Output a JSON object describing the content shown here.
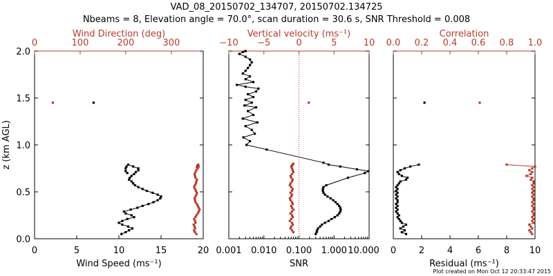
{
  "header": {
    "title": "VAD_08_20150702_134707, 20150702.134725",
    "subtitle": "Nbeams = 8, Elevation angle = 70.0°, scan duration = 30.6 s, SNR Threshold = 0.008"
  },
  "footer": {
    "timestamp": "Plot created on Mon Oct 12 20:33:47 2015"
  },
  "colors": {
    "primary": "#000000",
    "secondary": "#b83a2c"
  },
  "chart_data": [
    {
      "type": "line",
      "panel": "wind",
      "ylabel": "z (km AGL)",
      "ylim": [
        0,
        2
      ],
      "yticks": [
        "0.0",
        "0.5",
        "1.0",
        "1.5",
        "2.0"
      ],
      "xlabel_bottom": "Wind Speed (ms⁻¹)",
      "xlim_bottom": [
        0,
        20
      ],
      "xticks_bottom": [
        "0",
        "5",
        "10",
        "15",
        "20"
      ],
      "xlabel_top": "Wind Direction (deg)",
      "xlim_top": [
        0,
        370
      ],
      "xticks_top": [
        "0",
        "100",
        "200",
        "300"
      ],
      "series": [
        {
          "name": "Wind Speed",
          "axis": "bottom",
          "color": "#000000",
          "x": [
            10.3,
            10.8,
            11.2,
            11.6,
            11.1,
            10.4,
            10.0,
            10.4,
            11.0,
            11.8,
            11.5,
            10.8,
            10.6,
            11.4,
            12.2,
            12.8,
            13.5,
            14.1,
            14.6,
            14.9,
            15.0,
            14.6,
            14.0,
            13.3,
            12.8,
            12.3,
            11.9,
            11.7,
            11.5,
            11.2,
            11.3,
            11.5,
            11.8,
            12.0,
            12.3,
            12.3,
            11.7,
            11.1,
            10.9,
            10.8,
            10.8,
            11.0
          ],
          "y": [
            0.05,
            0.07,
            0.09,
            0.11,
            0.13,
            0.15,
            0.17,
            0.19,
            0.21,
            0.23,
            0.25,
            0.27,
            0.29,
            0.31,
            0.33,
            0.35,
            0.37,
            0.39,
            0.41,
            0.43,
            0.45,
            0.47,
            0.49,
            0.51,
            0.53,
            0.55,
            0.57,
            0.59,
            0.61,
            0.63,
            0.65,
            0.67,
            0.69,
            0.71,
            0.73,
            0.75,
            0.77,
            0.79,
            0.77,
            0.75,
            0.72,
            0.7
          ]
        },
        {
          "name": "Wind Speed (isolated)",
          "axis": "bottom",
          "color": "#000000",
          "x": [
            7.0
          ],
          "y": [
            1.45
          ]
        },
        {
          "name": "Wind Direction",
          "axis": "top",
          "color": "#b83a2c",
          "x": [
            355,
            352,
            350,
            352,
            351,
            349,
            353,
            352,
            350,
            353,
            355,
            358,
            360,
            362,
            360,
            358,
            356,
            353,
            352,
            351,
            353,
            355,
            356,
            354,
            352,
            350,
            352,
            354,
            355,
            356,
            353,
            352,
            351,
            353,
            355,
            358,
            360,
            359,
            357,
            356
          ],
          "y": [
            0.05,
            0.07,
            0.09,
            0.11,
            0.13,
            0.15,
            0.17,
            0.19,
            0.21,
            0.23,
            0.25,
            0.27,
            0.29,
            0.31,
            0.33,
            0.35,
            0.37,
            0.39,
            0.41,
            0.43,
            0.45,
            0.47,
            0.49,
            0.51,
            0.53,
            0.55,
            0.57,
            0.59,
            0.61,
            0.63,
            0.65,
            0.67,
            0.69,
            0.71,
            0.73,
            0.75,
            0.77,
            0.79,
            0.78,
            0.76
          ]
        },
        {
          "name": "Wind Direction (isolated)",
          "axis": "top",
          "color": "#b83a2c",
          "x": [
            40
          ],
          "y": [
            1.45
          ]
        }
      ]
    },
    {
      "type": "line",
      "panel": "snr_vertical_velocity",
      "ylim": [
        0,
        2
      ],
      "xlabel_bottom": "SNR",
      "xscale_bottom": "log",
      "xlim_bottom": [
        0.001,
        10.0
      ],
      "xticks_bottom": [
        "0.001",
        "0.010",
        "0.100",
        "1.000",
        "10.000"
      ],
      "xlabel_top": "Vertical velocity (ms⁻¹)",
      "xlim_top": [
        -10,
        10
      ],
      "xticks_top": [
        "−10",
        "−5",
        "0",
        "5",
        "10"
      ],
      "reference_line": {
        "axis": "top",
        "x": 0,
        "style": "dotted",
        "color": "#b83a2c"
      },
      "series": [
        {
          "name": "SNR",
          "axis": "bottom",
          "color": "#000000",
          "x": [
            0.3,
            0.32,
            0.33,
            0.35,
            0.4,
            0.45,
            0.55,
            0.7,
            0.85,
            1.05,
            1.25,
            1.4,
            1.5,
            1.55,
            1.5,
            1.4,
            1.25,
            1.1,
            0.95,
            0.8,
            0.65,
            0.55,
            0.5,
            0.48,
            0.48,
            0.5,
            0.6,
            2.5,
            7.5,
            9.5,
            4.5,
            1.5,
            0.7,
            0.5,
            0.012,
            0.0032,
            0.004,
            0.0026,
            0.0055,
            0.0045,
            0.003,
            0.0065,
            0.0025,
            0.005,
            0.0035,
            0.006,
            0.0028,
            0.0045,
            0.003,
            0.005,
            0.0035,
            0.006,
            0.007,
            0.003,
            0.0017,
            0.005,
            0.003,
            0.004,
            0.0025,
            0.003,
            0.0035,
            0.004,
            0.0045,
            0.004,
            0.003,
            0.002,
            0.0025,
            0.003
          ],
          "y": [
            0.05,
            0.07,
            0.09,
            0.11,
            0.13,
            0.15,
            0.17,
            0.19,
            0.21,
            0.23,
            0.25,
            0.27,
            0.29,
            0.31,
            0.33,
            0.35,
            0.37,
            0.39,
            0.41,
            0.43,
            0.45,
            0.47,
            0.49,
            0.51,
            0.53,
            0.55,
            0.57,
            0.65,
            0.7,
            0.72,
            0.74,
            0.77,
            0.79,
            0.81,
            0.95,
            1.0,
            1.04,
            1.08,
            1.12,
            1.16,
            1.2,
            1.24,
            1.28,
            1.32,
            1.36,
            1.4,
            1.42,
            1.45,
            1.48,
            1.51,
            1.54,
            1.57,
            1.6,
            1.62,
            1.64,
            1.67,
            1.7,
            1.73,
            1.76,
            1.79,
            1.82,
            1.85,
            1.88,
            1.91,
            1.94,
            1.97,
            1.99,
            2.0
          ]
        },
        {
          "name": "Vertical velocity",
          "axis": "top",
          "color": "#b83a2c",
          "x": [
            -0.8,
            -1.0,
            -1.2,
            -1.1,
            -0.9,
            -1.0,
            -1.3,
            -1.1,
            -0.9,
            -1.0,
            -1.2,
            -1.0,
            -0.8,
            -1.0,
            -1.1,
            -0.9,
            -1.0,
            -1.2,
            -1.3,
            -1.1,
            -1.0,
            -1.2,
            -1.0,
            -0.9,
            -1.1,
            -1.3,
            -1.2,
            -1.0,
            -0.9,
            -1.1,
            -1.2,
            -1.0,
            -0.8,
            -0.9,
            -1.0,
            -1.1,
            -1.0,
            -0.9,
            -0.8
          ],
          "y": [
            0.07,
            0.09,
            0.11,
            0.13,
            0.15,
            0.17,
            0.19,
            0.21,
            0.23,
            0.25,
            0.27,
            0.29,
            0.31,
            0.33,
            0.35,
            0.37,
            0.39,
            0.41,
            0.43,
            0.45,
            0.47,
            0.49,
            0.51,
            0.53,
            0.55,
            0.57,
            0.59,
            0.61,
            0.63,
            0.65,
            0.67,
            0.69,
            0.71,
            0.73,
            0.75,
            0.77,
            0.78,
            0.79,
            0.8
          ]
        },
        {
          "name": "Vertical velocity (isolated)",
          "axis": "top",
          "color": "#b83a2c",
          "x": [
            1.4
          ],
          "y": [
            1.45
          ]
        }
      ]
    },
    {
      "type": "line",
      "panel": "residual_correlation",
      "ylim": [
        0,
        2
      ],
      "xlabel_bottom": "Residual (ms⁻¹)",
      "xlim_bottom": [
        0,
        10
      ],
      "xticks_bottom": [
        "0",
        "2",
        "4",
        "6",
        "8",
        "10"
      ],
      "xlabel_top": "Correlation",
      "xlim_top": [
        0.0,
        1.0
      ],
      "xticks_top": [
        "0.0",
        "0.2",
        "0.4",
        "0.6",
        "0.8",
        "1.0"
      ],
      "series": [
        {
          "name": "Residual",
          "axis": "bottom",
          "color": "#000000",
          "x": [
            0.9,
            0.6,
            0.8,
            0.5,
            0.7,
            0.9,
            0.6,
            0.5,
            0.4,
            0.3,
            0.4,
            0.3,
            0.2,
            0.3,
            0.2,
            0.3,
            0.2,
            0.3,
            0.3,
            0.2,
            0.3,
            0.2,
            0.3,
            0.2,
            0.3,
            0.2,
            0.3,
            0.4,
            0.5,
            0.9,
            1.0,
            0.6,
            0.4,
            0.3,
            0.5,
            0.8,
            1.2,
            1.8
          ],
          "y": [
            0.05,
            0.07,
            0.09,
            0.11,
            0.13,
            0.15,
            0.17,
            0.19,
            0.21,
            0.23,
            0.25,
            0.27,
            0.29,
            0.31,
            0.33,
            0.35,
            0.37,
            0.39,
            0.41,
            0.43,
            0.45,
            0.47,
            0.49,
            0.51,
            0.53,
            0.55,
            0.57,
            0.59,
            0.61,
            0.63,
            0.65,
            0.67,
            0.69,
            0.71,
            0.73,
            0.75,
            0.77,
            0.79
          ]
        },
        {
          "name": "Residual (isolated)",
          "axis": "bottom",
          "color": "#000000",
          "x": [
            2.2
          ],
          "y": [
            1.45
          ]
        },
        {
          "name": "Correlation",
          "axis": "top",
          "color": "#b83a2c",
          "x": [
            0.98,
            0.97,
            0.96,
            0.98,
            0.97,
            0.96,
            0.99,
            0.98,
            0.99,
            0.98,
            0.99,
            0.99,
            0.98,
            0.99,
            0.99,
            0.98,
            0.99,
            0.98,
            0.99,
            0.99,
            0.98,
            0.99,
            0.98,
            0.99,
            0.98,
            0.99,
            0.98,
            0.99,
            0.99,
            0.97,
            0.98,
            0.94,
            0.97,
            0.98,
            0.96,
            0.98,
            1.0,
            0.8
          ],
          "y": [
            0.05,
            0.07,
            0.09,
            0.11,
            0.13,
            0.15,
            0.17,
            0.19,
            0.21,
            0.23,
            0.25,
            0.27,
            0.29,
            0.31,
            0.33,
            0.35,
            0.37,
            0.39,
            0.41,
            0.43,
            0.45,
            0.47,
            0.49,
            0.51,
            0.53,
            0.55,
            0.57,
            0.59,
            0.61,
            0.63,
            0.65,
            0.67,
            0.69,
            0.71,
            0.73,
            0.75,
            0.77,
            0.79
          ]
        },
        {
          "name": "Correlation (isolated)",
          "axis": "top",
          "color": "#b83a2c",
          "x": [
            0.61
          ],
          "y": [
            1.45
          ]
        }
      ]
    }
  ]
}
